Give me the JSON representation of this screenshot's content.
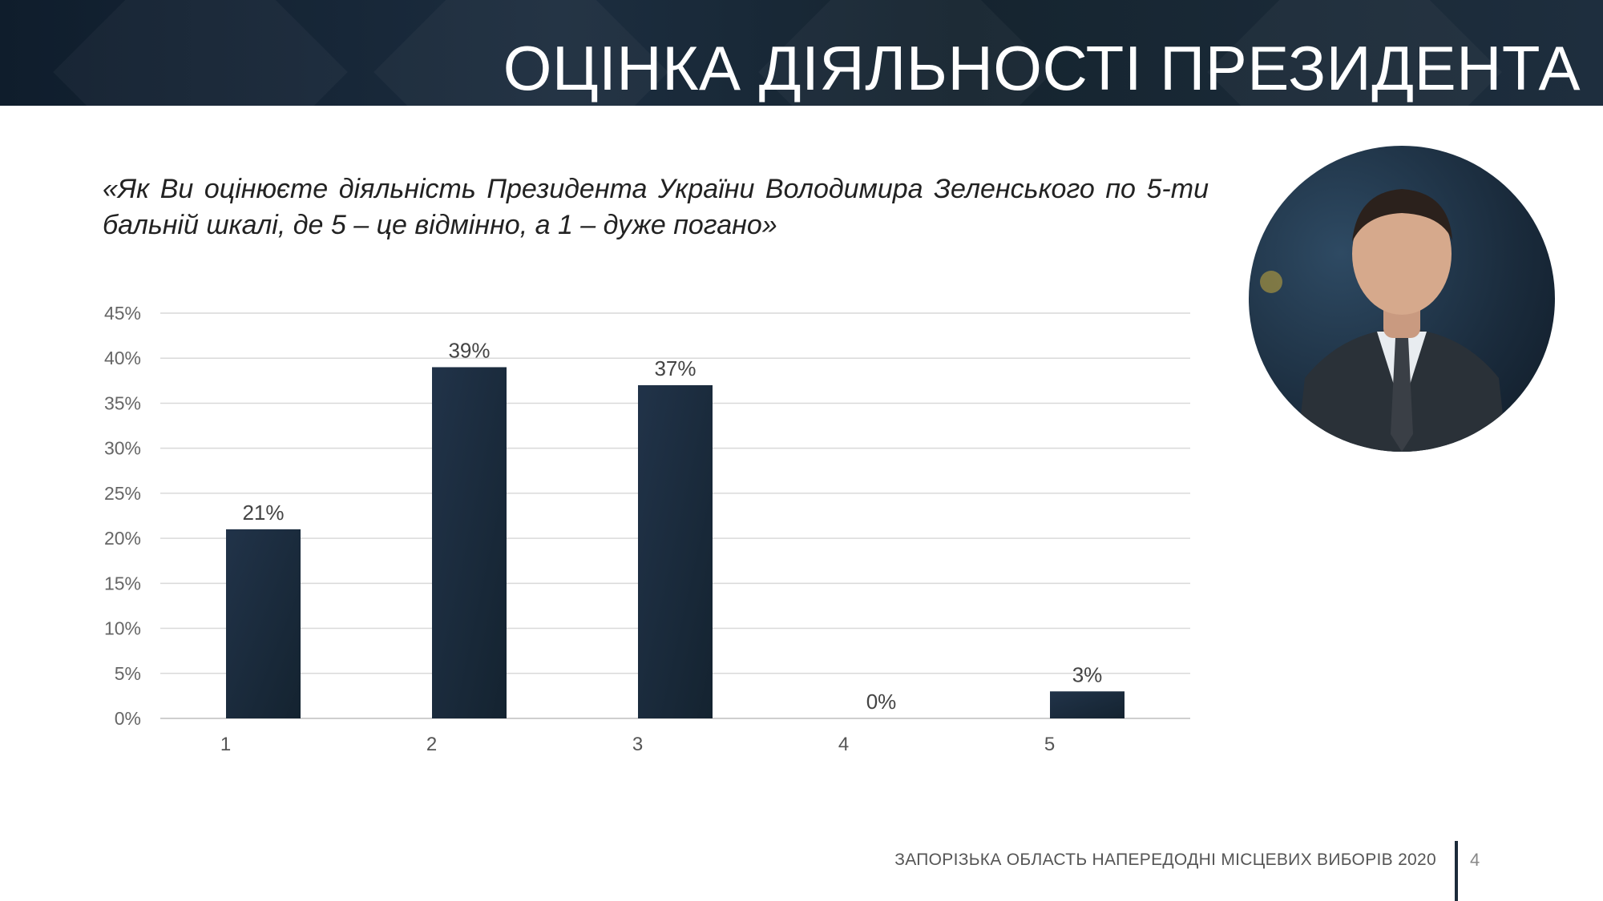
{
  "header": {
    "title": "ОЦІНКА ДІЯЛЬНОСТІ ПРЕЗИДЕНТА"
  },
  "question": "«Як Ви оцінюєте діяльність Президента України Володимира Зеленського по 5-ти бальній шкалі, де 5 – це відмінно, а 1 – дуже погано»",
  "chart_data": {
    "type": "bar",
    "categories": [
      "1",
      "2",
      "3",
      "4",
      "5"
    ],
    "values": [
      21,
      39,
      37,
      0,
      3
    ],
    "value_labels": [
      "21%",
      "39%",
      "37%",
      "0%",
      "3%"
    ],
    "ylim": [
      0,
      45
    ],
    "yticks": [
      "0%",
      "5%",
      "10%",
      "15%",
      "20%",
      "25%",
      "30%",
      "35%",
      "40%",
      "45%"
    ],
    "grid": true,
    "bar_color": "#1c2b3c"
  },
  "footer": {
    "text": "ЗАПОРІЗЬКА ОБЛАСТЬ НАПЕРЕДОДНІ МІСЦЕВИХ ВИБОРІВ 2020",
    "page": "4"
  },
  "photo": {
    "icon": "president-portrait"
  }
}
